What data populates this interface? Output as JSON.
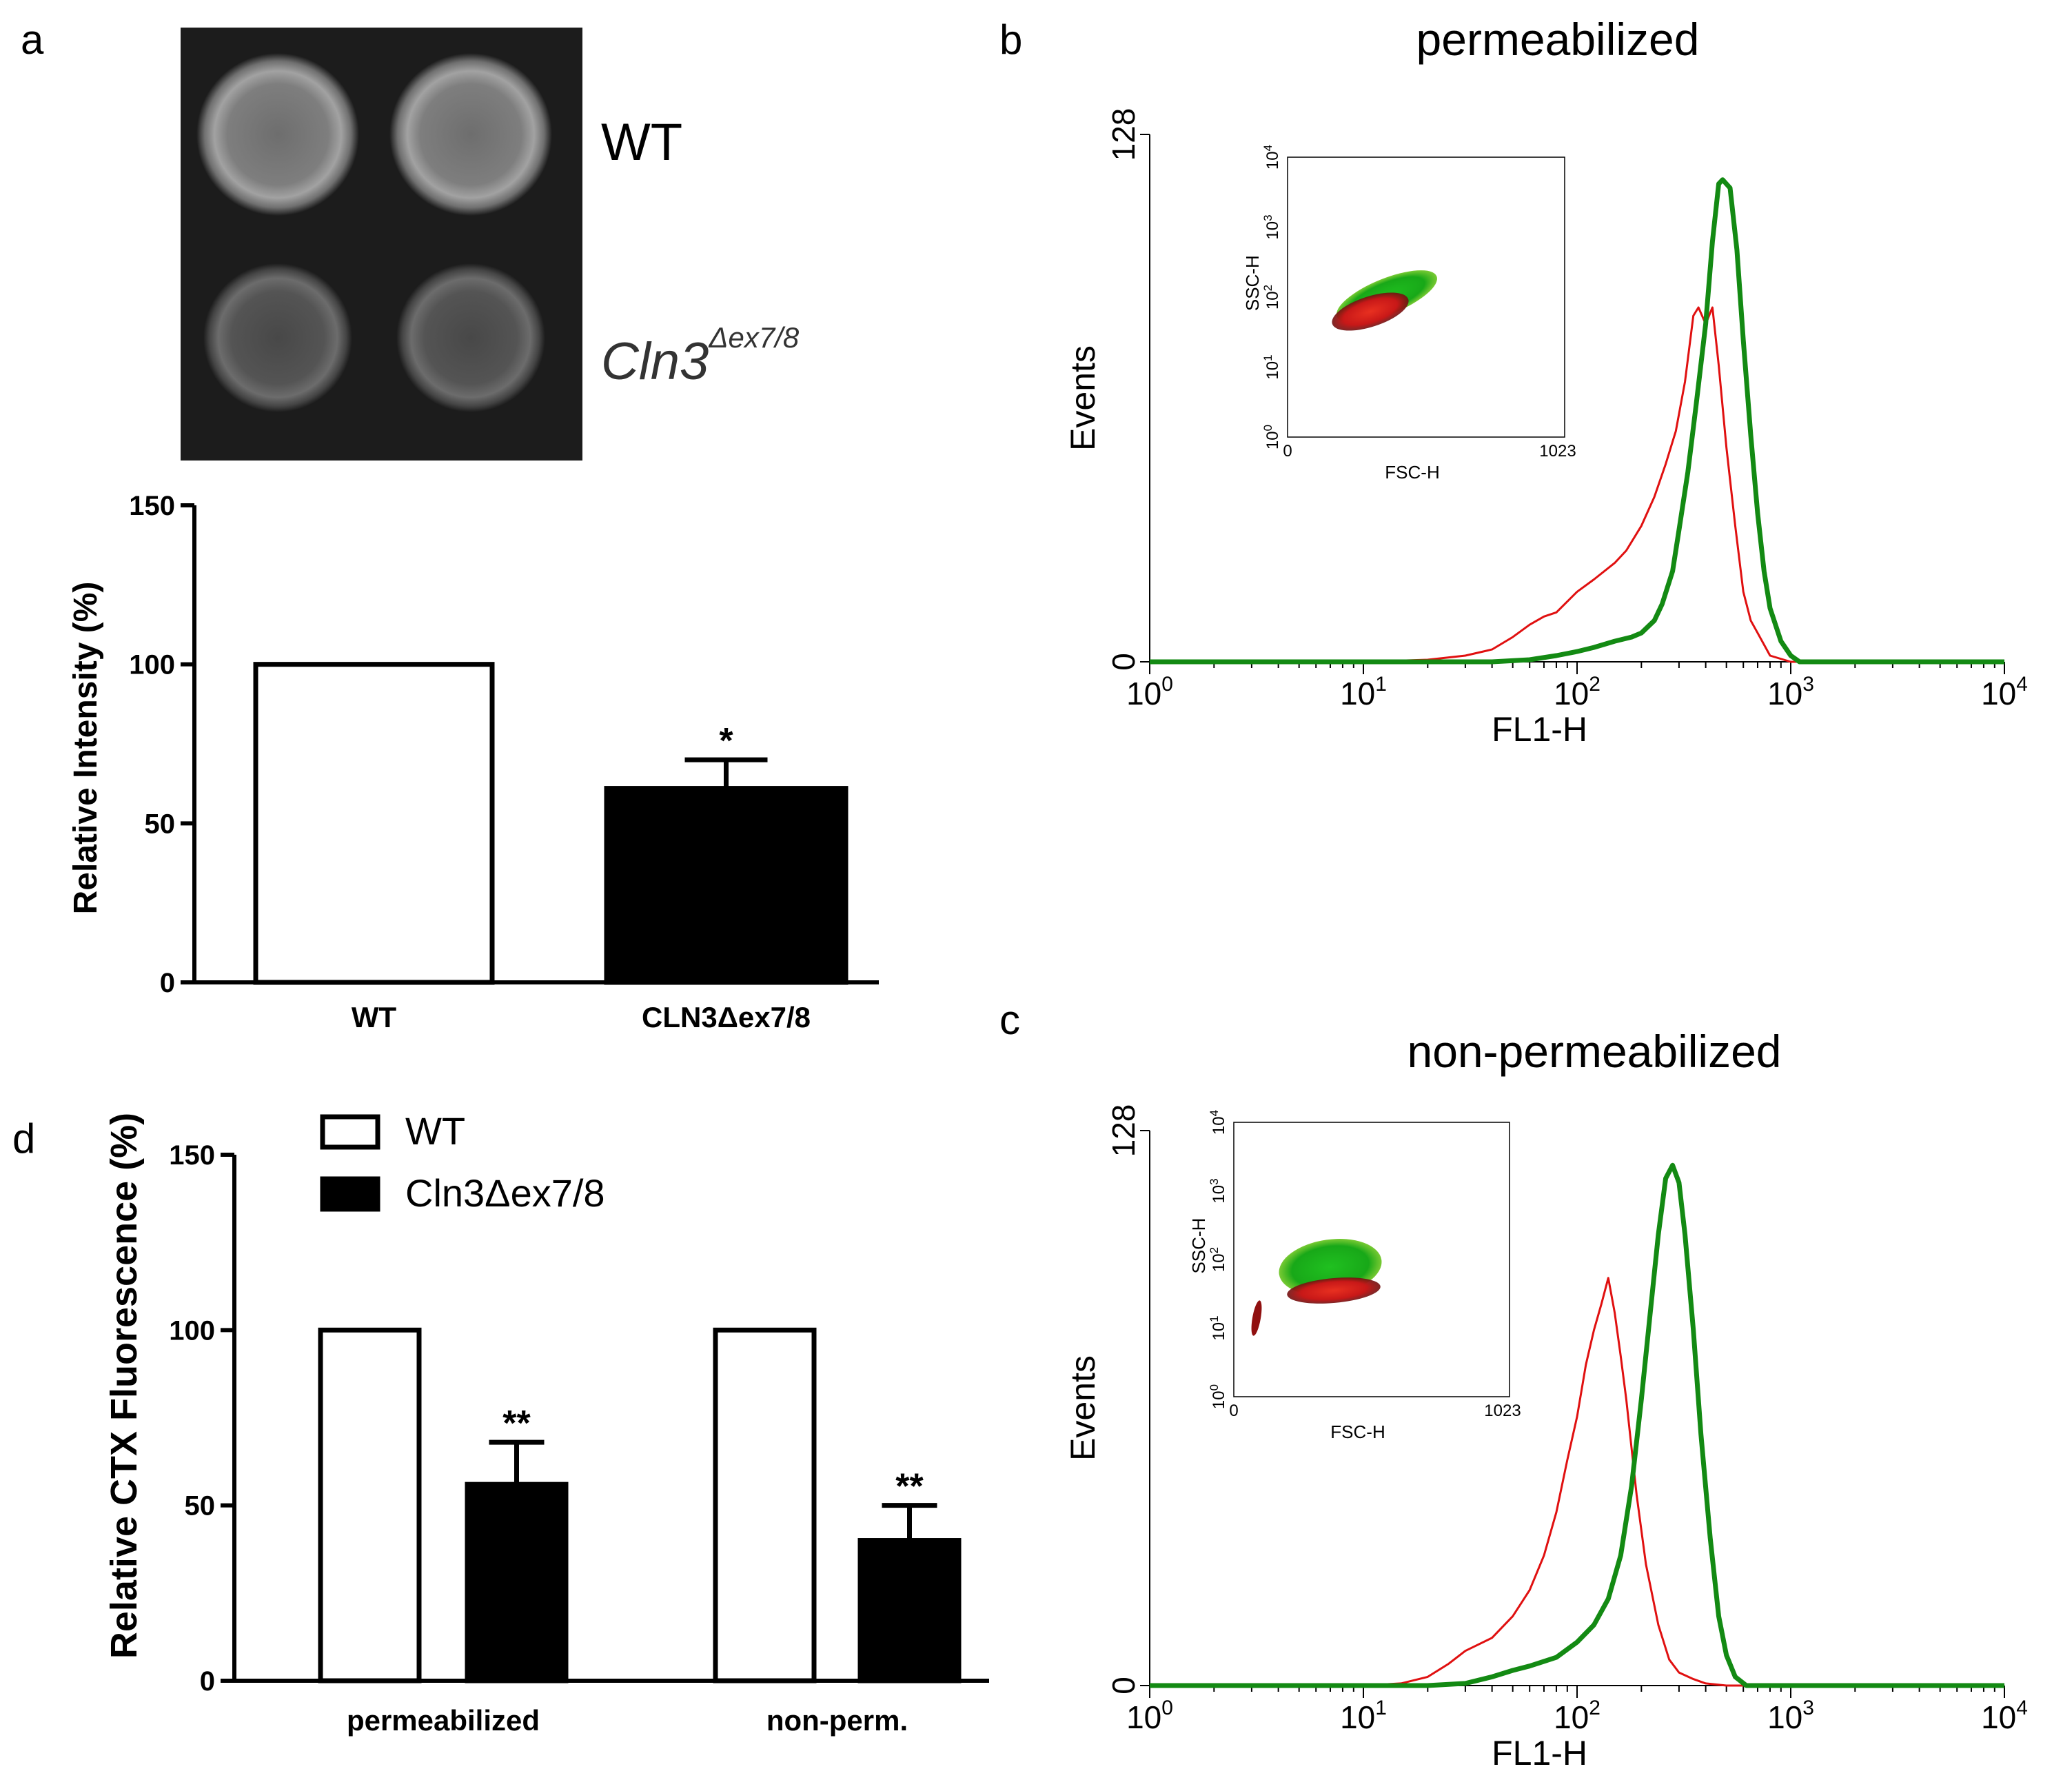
{
  "panels": {
    "a": {
      "letter": "a"
    },
    "b": {
      "letter": "b"
    },
    "c": {
      "letter": "c"
    },
    "d": {
      "letter": "d"
    }
  },
  "blot": {
    "row_labels": [
      "WT",
      "Cln3",
      "Δex7/8"
    ],
    "background_color": "#1c1c1c"
  },
  "chart_data": [
    {
      "id": "a",
      "type": "bar",
      "title": "",
      "ylabel": "Relative Intensity (%)",
      "xlabel": "",
      "ylim": [
        0,
        150
      ],
      "yticks": [
        "0",
        "50",
        "100",
        "150"
      ],
      "categories": [
        "WT",
        "CLN3Δex7/8"
      ],
      "values": [
        100,
        61
      ],
      "errors": [
        0,
        9
      ],
      "fills": [
        "#ffffff",
        "#000000"
      ],
      "significance": [
        "",
        "*"
      ]
    },
    {
      "id": "d",
      "type": "bar",
      "title": "",
      "ylabel": "Relative CTX Fluorescence (%)",
      "xlabel": "",
      "ylim": [
        0,
        150
      ],
      "yticks": [
        "0",
        "50",
        "100",
        "150"
      ],
      "categories": [
        "permeabilized",
        "non-perm."
      ],
      "series": [
        {
          "name": "WT",
          "values": [
            100,
            100
          ],
          "errors": [
            0,
            0
          ],
          "fill": "#ffffff",
          "significance": [
            "",
            ""
          ]
        },
        {
          "name": "Cln3Δex7/8",
          "values": [
            56,
            40
          ],
          "errors": [
            12,
            10
          ],
          "fill": "#000000",
          "significance": [
            "**",
            "**"
          ]
        }
      ],
      "legend_position": "top-left"
    },
    {
      "id": "b",
      "type": "line",
      "title": "permeabilized",
      "xlabel": "FL1-H",
      "ylabel": "Events",
      "x_scale": "log",
      "xlim": [
        1,
        10000
      ],
      "ylim": [
        0,
        128
      ],
      "yticks": [
        "0",
        "128"
      ],
      "xticks": [
        {
          "base": "10",
          "exp": "0"
        },
        {
          "base": "10",
          "exp": "1"
        },
        {
          "base": "10",
          "exp": "2"
        },
        {
          "base": "10",
          "exp": "3"
        },
        {
          "base": "10",
          "exp": "4"
        }
      ],
      "series": [
        {
          "color": "#e01010",
          "stroke_width": 3,
          "x": [
            1,
            10,
            20,
            30,
            40,
            50,
            60,
            70,
            80,
            100,
            120,
            150,
            170,
            200,
            230,
            260,
            290,
            320,
            350,
            370,
            400,
            430,
            460,
            500,
            550,
            600,
            650,
            700,
            800,
            1000,
            10000
          ],
          "y": [
            0,
            0,
            0.5,
            1.5,
            3,
            6,
            9,
            11,
            12,
            17,
            20,
            24,
            27,
            33,
            40,
            48,
            56,
            68,
            84,
            86,
            82,
            86,
            72,
            52,
            33,
            17,
            10,
            7,
            1.5,
            0,
            0
          ]
        },
        {
          "color": "#138a13",
          "stroke_width": 7,
          "x": [
            1,
            20,
            40,
            60,
            80,
            100,
            120,
            150,
            180,
            200,
            230,
            250,
            280,
            300,
            330,
            360,
            400,
            430,
            460,
            480,
            520,
            560,
            600,
            650,
            700,
            750,
            800,
            900,
            1000,
            1100,
            10000
          ],
          "y": [
            0,
            0,
            0,
            0.5,
            1.5,
            2.5,
            3.5,
            5,
            6,
            7,
            10,
            14,
            22,
            32,
            46,
            62,
            82,
            102,
            116,
            117,
            115,
            100,
            78,
            55,
            36,
            22,
            13,
            5,
            1.5,
            0,
            0
          ]
        }
      ],
      "inset": {
        "xlabel": "FSC-H",
        "ylabel": "SSC-H",
        "xticks": [
          "0",
          "1023"
        ],
        "yticks": [
          {
            "base": "10",
            "exp": "0"
          },
          {
            "base": "10",
            "exp": "1"
          },
          {
            "base": "10",
            "exp": "2"
          },
          {
            "base": "10",
            "exp": "3"
          },
          {
            "base": "10",
            "exp": "4"
          }
        ]
      }
    },
    {
      "id": "c",
      "type": "line",
      "title": "non-permeabilized",
      "xlabel": "FL1-H",
      "ylabel": "Events",
      "x_scale": "log",
      "xlim": [
        1,
        10000
      ],
      "ylim": [
        0,
        128
      ],
      "yticks": [
        "0",
        "128"
      ],
      "xticks": [
        {
          "base": "10",
          "exp": "0"
        },
        {
          "base": "10",
          "exp": "1"
        },
        {
          "base": "10",
          "exp": "2"
        },
        {
          "base": "10",
          "exp": "3"
        },
        {
          "base": "10",
          "exp": "4"
        }
      ],
      "series": [
        {
          "color": "#e01010",
          "stroke_width": 3,
          "x": [
            1,
            10,
            15,
            20,
            25,
            30,
            40,
            50,
            60,
            70,
            80,
            90,
            100,
            110,
            120,
            130,
            140,
            150,
            160,
            170,
            190,
            210,
            240,
            270,
            300,
            350,
            400,
            500,
            10000
          ],
          "y": [
            0,
            0,
            0.5,
            2,
            5,
            8,
            11,
            16,
            22,
            30,
            40,
            52,
            62,
            74,
            82,
            88,
            94,
            86,
            76,
            66,
            44,
            28,
            14,
            6,
            3,
            1.5,
            0.5,
            0,
            0
          ]
        },
        {
          "color": "#138a13",
          "stroke_width": 7,
          "x": [
            1,
            20,
            30,
            40,
            50,
            60,
            80,
            100,
            120,
            140,
            160,
            180,
            200,
            220,
            240,
            260,
            280,
            300,
            320,
            350,
            380,
            420,
            460,
            500,
            550,
            620,
            10000
          ],
          "y": [
            0,
            0,
            0.5,
            2,
            3.5,
            4.5,
            6.5,
            10,
            14,
            20,
            30,
            46,
            66,
            86,
            104,
            117,
            120,
            116,
            104,
            82,
            58,
            34,
            16,
            7,
            2,
            0,
            0
          ]
        }
      ],
      "inset": {
        "xlabel": "FSC-H",
        "ylabel": "SSC-H",
        "xticks": [
          "0",
          "1023"
        ],
        "yticks": [
          {
            "base": "10",
            "exp": "0"
          },
          {
            "base": "10",
            "exp": "1"
          },
          {
            "base": "10",
            "exp": "2"
          },
          {
            "base": "10",
            "exp": "3"
          },
          {
            "base": "10",
            "exp": "4"
          }
        ]
      }
    }
  ]
}
